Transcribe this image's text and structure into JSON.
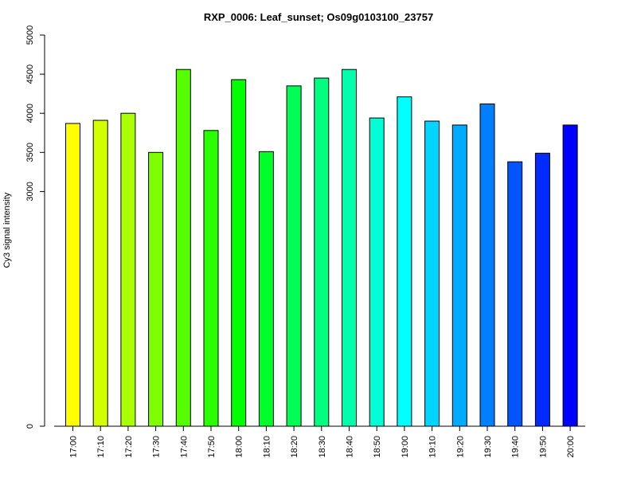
{
  "chart_data": {
    "type": "bar",
    "title": "RXP_0006: Leaf_sunset; Os09g0103100_23757",
    "xlabel": "",
    "ylabel": "Cy3 signal intensity",
    "ylim": [
      0,
      5000
    ],
    "y_ticks": [
      "0",
      "3000",
      "3500",
      "4000",
      "4500",
      "5000"
    ],
    "grid": false,
    "categories": [
      "17:00",
      "17:10",
      "17:20",
      "17:30",
      "17:40",
      "17:50",
      "18:00",
      "18:10",
      "18:20",
      "18:30",
      "18:40",
      "18:50",
      "19:00",
      "19:10",
      "19:20",
      "19:30",
      "19:40",
      "19:50",
      "20:00"
    ],
    "values": [
      3870,
      3910,
      4000,
      3500,
      4560,
      3780,
      4430,
      3510,
      4350,
      4450,
      4560,
      3940,
      4210,
      3900,
      3850,
      4120,
      3380,
      3490,
      3850
    ],
    "colors": [
      "#FFFF00",
      "#D4FF00",
      "#AAFF00",
      "#80FF00",
      "#55FF00",
      "#2AFF00",
      "#00FF00",
      "#00FF2A",
      "#00FF55",
      "#00FF80",
      "#00FFAA",
      "#00FFD4",
      "#00FFFF",
      "#00D4FF",
      "#00AAFF",
      "#0080FF",
      "#0055FF",
      "#002AFF",
      "#0000FF"
    ]
  }
}
